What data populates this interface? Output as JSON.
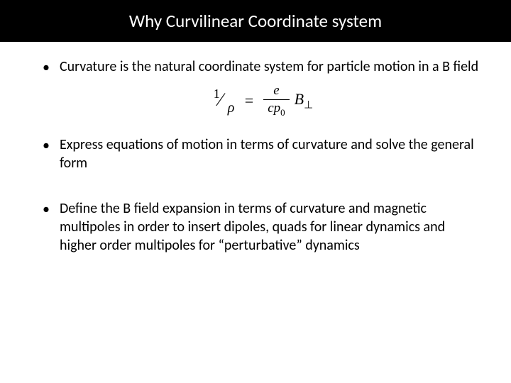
{
  "title": "Why Curvilinear Coordinate system",
  "bullets": [
    "Curvature is the natural coordinate system for particle motion in a B field",
    "Express equations of motion in terms of curvature and solve the general form",
    "Define the B field expansion in terms of curvature and magnetic multipoles in order to insert dipoles, quads for linear dynamics and higher order multipoles for “perturbative” dynamics"
  ],
  "equation": {
    "left_numerator": "1",
    "left_denominator": "ρ",
    "rhs_frac_num": "e",
    "rhs_frac_den_c": "c",
    "rhs_frac_den_p": "p",
    "rhs_frac_den_sub": "0",
    "rhs_B": "B",
    "rhs_B_sub": "⊥"
  },
  "style": {
    "title_bg": "#000000",
    "title_color": "#ffffff",
    "body_bg": "#ffffff",
    "text_color": "#000000",
    "title_fontsize": 25,
    "bullet_fontsize": 20,
    "equation_fontsize": 22,
    "bullet_marker": "•",
    "font_family": "Calibri, 'Segoe UI', Arial, sans-serif",
    "equation_font": "'Cambria Math', 'Times New Roman', serif"
  }
}
